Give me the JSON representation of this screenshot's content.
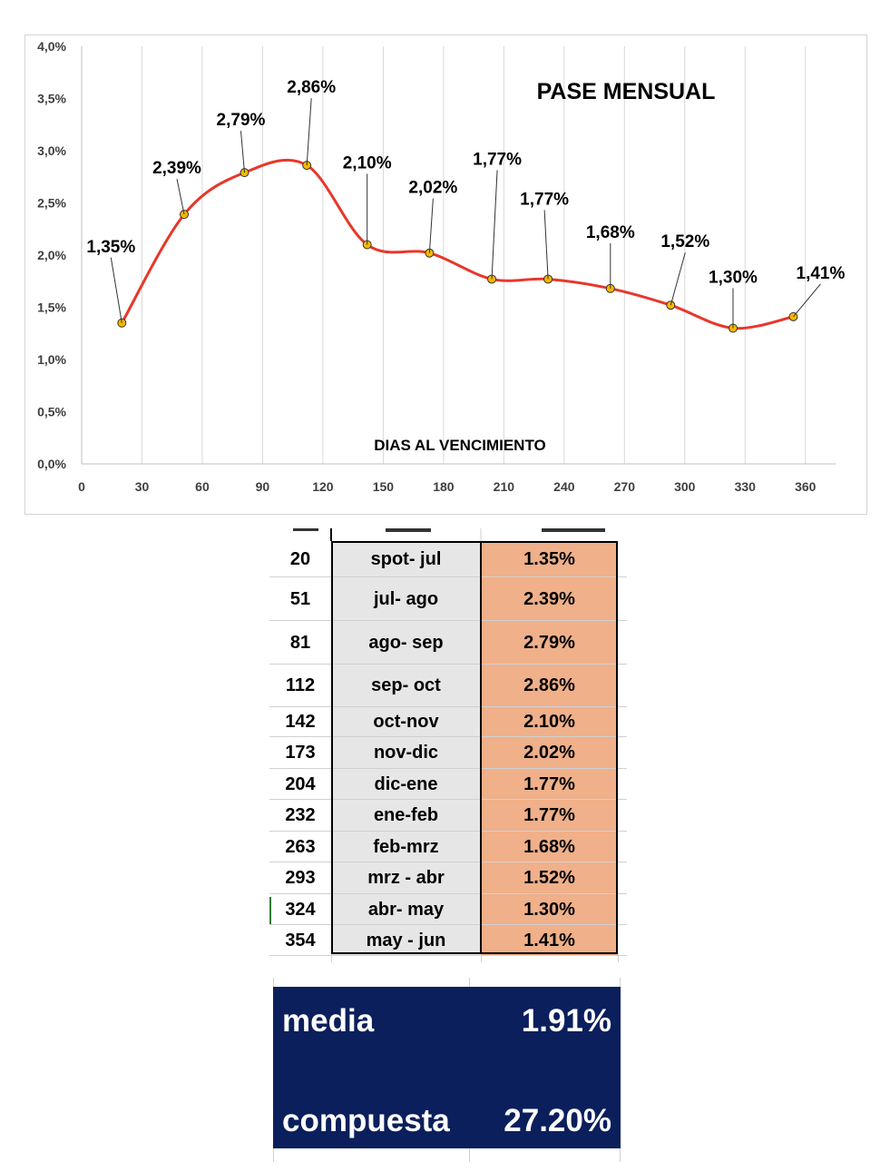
{
  "chart_data": {
    "type": "line",
    "title": "PASE MENSUAL",
    "xlabel": "DIAS AL VENCIMIENTO",
    "ylabel": "",
    "x": [
      20,
      51,
      81,
      112,
      142,
      173,
      204,
      232,
      263,
      293,
      324,
      354
    ],
    "values": [
      1.35,
      2.39,
      2.79,
      2.86,
      2.1,
      2.02,
      1.77,
      1.77,
      1.68,
      1.52,
      1.3,
      1.41
    ],
    "data_labels": [
      "1,35%",
      "2,39%",
      "2,79%",
      "2,86%",
      "2,10%",
      "2,02%",
      "1,77%",
      "1,77%",
      "1,68%",
      "1,52%",
      "1,30%",
      "1,41%"
    ],
    "xlim": [
      0,
      375
    ],
    "ylim": [
      0,
      4
    ],
    "x_ticks": [
      "0",
      "30",
      "60",
      "90",
      "120",
      "150",
      "180",
      "210",
      "240",
      "270",
      "300",
      "330",
      "360"
    ],
    "y_ticks": [
      "0,0%",
      "0,5%",
      "1,0%",
      "1,5%",
      "2,0%",
      "2,5%",
      "3,0%",
      "3,5%",
      "4,0%"
    ],
    "grid": "vertical",
    "line_color": "#e8372a",
    "marker_color": "#f5b800",
    "smooth": true
  },
  "table": {
    "rows": [
      {
        "days": "20",
        "range": "spot- jul",
        "value": "1.35%"
      },
      {
        "days": "51",
        "range": "jul- ago",
        "value": "2.39%"
      },
      {
        "days": "81",
        "range": "ago- sep",
        "value": "2.79%"
      },
      {
        "days": "112",
        "range": "sep- oct",
        "value": "2.86%"
      },
      {
        "days": "142",
        "range": "oct-nov",
        "value": "2.10%"
      },
      {
        "days": "173",
        "range": "nov-dic",
        "value": "2.02%"
      },
      {
        "days": "204",
        "range": "dic-ene",
        "value": "1.77%"
      },
      {
        "days": "232",
        "range": "ene-feb",
        "value": "1.77%"
      },
      {
        "days": "263",
        "range": "feb-mrz",
        "value": "1.68%"
      },
      {
        "days": "293",
        "range": "mrz - abr",
        "value": "1.52%"
      },
      {
        "days": "324",
        "range": "abr- may",
        "value": "1.30%"
      },
      {
        "days": "354",
        "range": "may - jun",
        "value": "1.41%"
      }
    ],
    "value_fill": "#efb08a",
    "range_fill": "#e6e6e6"
  },
  "summary": {
    "media_label": "media",
    "media_value": "1.91%",
    "compuesta_label": "compuesta",
    "compuesta_value": "27.20%",
    "background": "#0b1f5c"
  }
}
